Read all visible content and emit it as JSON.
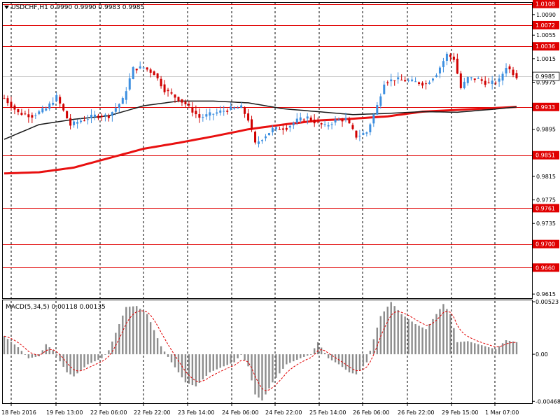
{
  "colors": {
    "bull": "#3d8fe0",
    "bear": "#d00000",
    "level": "#e00000",
    "ma_slow": "#e81010",
    "ma_fast": "#1a1a1a",
    "macd_bar": "#8c8c8c",
    "macd_signal": "#e00000",
    "grid": "#000000",
    "price_tag_bg": "#ffffff"
  },
  "header": {
    "symbol_line": "USDCHF,H1  0.9990 0.9990 0.9983 0.9985",
    "dropdown_icon": "triangle-down-icon"
  },
  "chart_data": {
    "type": "candlestick",
    "ylim": [
      0.9608,
      1.011
    ],
    "y_ticks": [
      "1.0090",
      "1.0055",
      "1.0015",
      "0.9975",
      "0.9895",
      "0.9815",
      "0.9775",
      "0.9735",
      "0.9615"
    ],
    "levels": [
      "1.0108",
      "1.0072",
      "1.0036",
      "0.9933",
      "0.9851",
      "0.9761",
      "0.9700",
      "0.9660"
    ],
    "current_price": "0.9985",
    "x_labels": [
      "18 Feb 2016",
      "19 Feb 13:00",
      "22 Feb 06:00",
      "22 Feb 22:00",
      "23 Feb 14:00",
      "24 Feb 06:00",
      "24 Feb 22:00",
      "25 Feb 14:00",
      "26 Feb 06:00",
      "26 Feb 22:00",
      "29 Feb 15:00",
      "1 Mar 07:00"
    ],
    "anchors": [
      [
        0,
        0.9948
      ],
      [
        4,
        0.9923
      ],
      [
        8,
        0.9918
      ],
      [
        12,
        0.993
      ],
      [
        15,
        0.995
      ],
      [
        19,
        0.9902
      ],
      [
        22,
        0.991
      ],
      [
        26,
        0.9918
      ],
      [
        30,
        0.9918
      ],
      [
        34,
        0.9945
      ],
      [
        37,
        0.9998
      ],
      [
        40,
        1.0
      ],
      [
        43,
        0.999
      ],
      [
        46,
        0.9962
      ],
      [
        49,
        0.995
      ],
      [
        52,
        0.9938
      ],
      [
        56,
        0.9915
      ],
      [
        59,
        0.992
      ],
      [
        62,
        0.9925
      ],
      [
        65,
        0.993
      ],
      [
        68,
        0.9932
      ],
      [
        70,
        0.9912
      ],
      [
        72,
        0.987
      ],
      [
        74,
        0.988
      ],
      [
        77,
        0.9895
      ],
      [
        81,
        0.9898
      ],
      [
        84,
        0.991
      ],
      [
        87,
        0.9915
      ],
      [
        89,
        0.9908
      ],
      [
        92,
        0.99
      ],
      [
        95,
        0.991
      ],
      [
        98,
        0.9912
      ],
      [
        101,
        0.9883
      ],
      [
        104,
        0.989
      ],
      [
        107,
        0.9935
      ],
      [
        109,
        0.9975
      ],
      [
        112,
        0.998
      ],
      [
        115,
        0.9978
      ],
      [
        118,
        0.9975
      ],
      [
        121,
        0.9972
      ],
      [
        124,
        0.999
      ],
      [
        127,
        1.0022
      ],
      [
        129,
        1.0015
      ],
      [
        131,
        0.9965
      ],
      [
        133,
        0.9982
      ],
      [
        136,
        0.998
      ],
      [
        139,
        0.9972
      ],
      [
        142,
        0.9978
      ],
      [
        144,
        1.0002
      ],
      [
        147,
        0.9985
      ]
    ],
    "ma_fast": [
      [
        0,
        0.9878
      ],
      [
        10,
        0.9903
      ],
      [
        20,
        0.9912
      ],
      [
        30,
        0.9918
      ],
      [
        40,
        0.9935
      ],
      [
        50,
        0.9943
      ],
      [
        60,
        0.9943
      ],
      [
        70,
        0.994
      ],
      [
        80,
        0.993
      ],
      [
        90,
        0.9925
      ],
      [
        100,
        0.992
      ],
      [
        110,
        0.9922
      ],
      [
        120,
        0.9925
      ],
      [
        130,
        0.9924
      ],
      [
        140,
        0.9929
      ],
      [
        147,
        0.9933
      ]
    ],
    "ma_slow": [
      [
        0,
        0.982
      ],
      [
        10,
        0.9822
      ],
      [
        20,
        0.983
      ],
      [
        30,
        0.9846
      ],
      [
        40,
        0.9862
      ],
      [
        50,
        0.9872
      ],
      [
        60,
        0.9883
      ],
      [
        70,
        0.9895
      ],
      [
        80,
        0.9903
      ],
      [
        90,
        0.991
      ],
      [
        100,
        0.9913
      ],
      [
        110,
        0.9917
      ],
      [
        120,
        0.9925
      ],
      [
        130,
        0.9928
      ],
      [
        140,
        0.9931
      ],
      [
        147,
        0.9933
      ]
    ],
    "macd": {
      "label": "MACD(5,34,5) 0.00118 0.00135",
      "ylim": [
        -0.0048,
        0.0053
      ],
      "ticks": [
        "0.00523",
        "0.00",
        "-0.00468"
      ],
      "anchors": [
        [
          0,
          0.0018
        ],
        [
          4,
          0.0007
        ],
        [
          7,
          -0.0004
        ],
        [
          10,
          -0.0002
        ],
        [
          12,
          0.001
        ],
        [
          14,
          0.0004
        ],
        [
          18,
          -0.0018
        ],
        [
          20,
          -0.0022
        ],
        [
          24,
          -0.001
        ],
        [
          28,
          -0.0004
        ],
        [
          30,
          0.0004
        ],
        [
          33,
          0.003
        ],
        [
          35,
          0.0047
        ],
        [
          38,
          0.0048
        ],
        [
          41,
          0.004
        ],
        [
          45,
          0.0008
        ],
        [
          48,
          -0.0008
        ],
        [
          52,
          -0.0028
        ],
        [
          55,
          -0.0032
        ],
        [
          59,
          -0.0018
        ],
        [
          63,
          -0.0012
        ],
        [
          66,
          -0.0008
        ],
        [
          68,
          0.0
        ],
        [
          70,
          -0.0012
        ],
        [
          72,
          -0.004
        ],
        [
          74,
          -0.0046
        ],
        [
          77,
          -0.0028
        ],
        [
          81,
          -0.001
        ],
        [
          85,
          -0.0004
        ],
        [
          88,
          0.0
        ],
        [
          90,
          0.0012
        ],
        [
          93,
          -0.0004
        ],
        [
          96,
          -0.001
        ],
        [
          99,
          -0.0018
        ],
        [
          101,
          -0.002
        ],
        [
          104,
          -0.0008
        ],
        [
          106,
          0.0015
        ],
        [
          108,
          0.0038
        ],
        [
          111,
          0.0052
        ],
        [
          114,
          0.004
        ],
        [
          118,
          0.003
        ],
        [
          121,
          0.0025
        ],
        [
          124,
          0.004
        ],
        [
          126,
          0.005
        ],
        [
          128,
          0.004
        ],
        [
          130,
          0.0012
        ],
        [
          133,
          0.0013
        ],
        [
          137,
          0.0009
        ],
        [
          141,
          0.0005
        ],
        [
          144,
          0.0014
        ],
        [
          147,
          0.0012
        ]
      ]
    }
  }
}
